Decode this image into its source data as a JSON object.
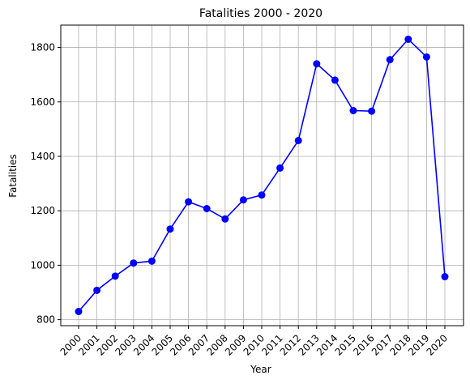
{
  "chart_data": {
    "type": "line",
    "title": "Fatalities 2000 - 2020",
    "xlabel": "Year",
    "ylabel": "Fatalities",
    "x": [
      "2000",
      "2001",
      "2002",
      "2003",
      "2004",
      "2005",
      "2006",
      "2007",
      "2008",
      "2009",
      "2010",
      "2011",
      "2012",
      "2013",
      "2014",
      "2015",
      "2016",
      "2017",
      "2018",
      "2019",
      "2020"
    ],
    "series": [
      {
        "values": [
          830,
          908,
          960,
          1008,
          1015,
          1133,
          1233,
          1208,
          1170,
          1240,
          1258,
          1357,
          1458,
          1740,
          1680,
          1568,
          1566,
          1755,
          1830,
          1765,
          958
        ]
      }
    ],
    "ylim": [
      778,
      1882
    ],
    "yticks": [
      800,
      1000,
      1200,
      1400,
      1600,
      1800
    ],
    "grid": true,
    "color": "#0000ff",
    "marker": "circle"
  }
}
